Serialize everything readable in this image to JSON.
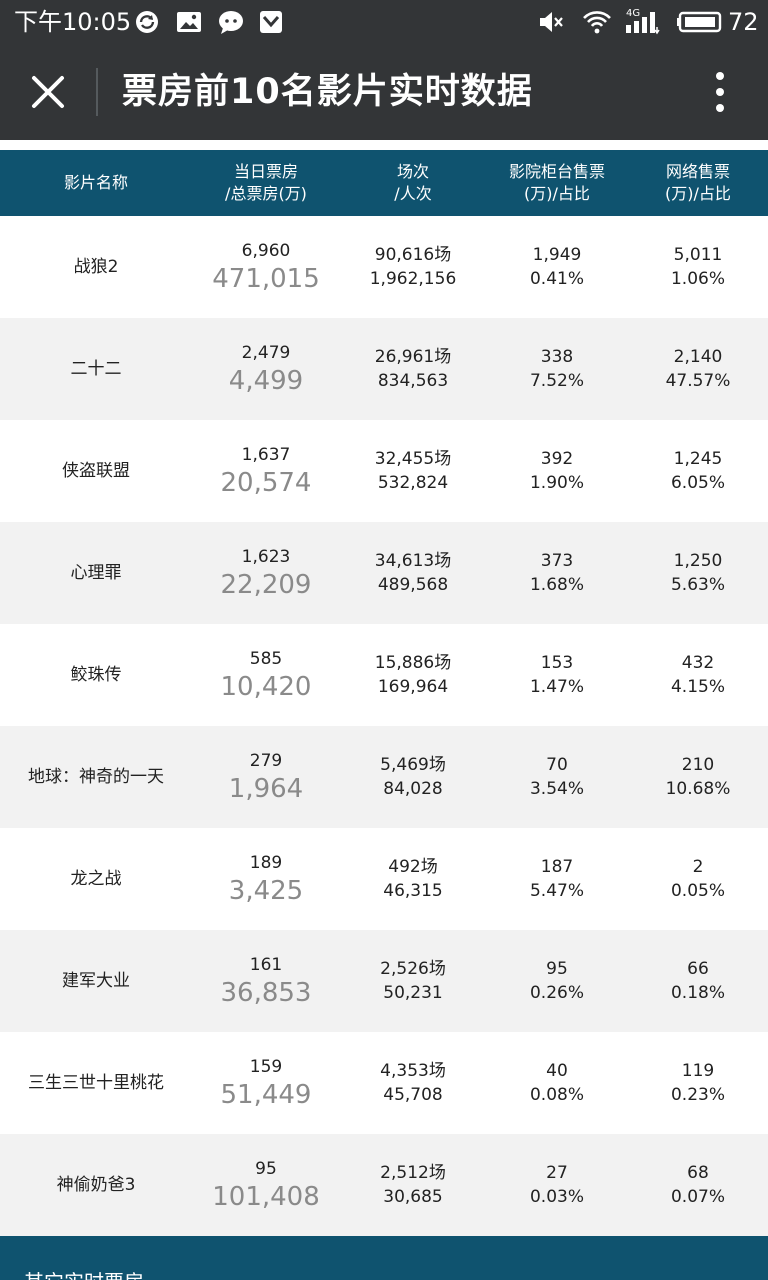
{
  "status_bar": {
    "time": "下午10:05",
    "battery": "72",
    "network": "4G",
    "icons": [
      "sync-icon",
      "image-icon",
      "chat-icon",
      "shield-icon",
      "mute-icon",
      "wifi-icon",
      "signal-icon",
      "battery-icon"
    ]
  },
  "app_bar": {
    "title": "票房前10名影片实时数据",
    "close_icon": "close-icon",
    "more_icon": "more-vertical-icon"
  },
  "table": {
    "headers": [
      {
        "line1": "影片名称",
        "line2": ""
      },
      {
        "line1": "当日票房",
        "line2": "/总票房(万)"
      },
      {
        "line1": "场次",
        "line2": "/人次"
      },
      {
        "line1": "影院柜台售票",
        "line2": "(万)/占比"
      },
      {
        "line1": "网络售票",
        "line2": "(万)/占比"
      }
    ],
    "rows": [
      {
        "name": "战狼2",
        "daily": "6,960",
        "total": "471,015",
        "shows": "90,616场",
        "people": "1,962,156",
        "counter": "1,949",
        "counter_pct": "0.41%",
        "online": "5,011",
        "online_pct": "1.06%"
      },
      {
        "name": "二十二",
        "daily": "2,479",
        "total": "4,499",
        "shows": "26,961场",
        "people": "834,563",
        "counter": "338",
        "counter_pct": "7.52%",
        "online": "2,140",
        "online_pct": "47.57%"
      },
      {
        "name": "侠盗联盟",
        "daily": "1,637",
        "total": "20,574",
        "shows": "32,455场",
        "people": "532,824",
        "counter": "392",
        "counter_pct": "1.90%",
        "online": "1,245",
        "online_pct": "6.05%"
      },
      {
        "name": "心理罪",
        "daily": "1,623",
        "total": "22,209",
        "shows": "34,613场",
        "people": "489,568",
        "counter": "373",
        "counter_pct": "1.68%",
        "online": "1,250",
        "online_pct": "5.63%"
      },
      {
        "name": "鲛珠传",
        "daily": "585",
        "total": "10,420",
        "shows": "15,886场",
        "people": "169,964",
        "counter": "153",
        "counter_pct": "1.47%",
        "online": "432",
        "online_pct": "4.15%"
      },
      {
        "name": "地球：神奇的一天",
        "daily": "279",
        "total": "1,964",
        "shows": "5,469场",
        "people": "84,028",
        "counter": "70",
        "counter_pct": "3.54%",
        "online": "210",
        "online_pct": "10.68%"
      },
      {
        "name": "龙之战",
        "daily": "189",
        "total": "3,425",
        "shows": "492场",
        "people": "46,315",
        "counter": "187",
        "counter_pct": "5.47%",
        "online": "2",
        "online_pct": "0.05%"
      },
      {
        "name": "建军大业",
        "daily": "161",
        "total": "36,853",
        "shows": "2,526场",
        "people": "50,231",
        "counter": "95",
        "counter_pct": "0.26%",
        "online": "66",
        "online_pct": "0.18%"
      },
      {
        "name": "三生三世十里桃花",
        "daily": "159",
        "total": "51,449",
        "shows": "4,353场",
        "people": "45,708",
        "counter": "40",
        "counter_pct": "0.08%",
        "online": "119",
        "online_pct": "0.23%"
      },
      {
        "name": "神偷奶爸3",
        "daily": "95",
        "total": "101,408",
        "shows": "2,512场",
        "people": "30,685",
        "counter": "27",
        "counter_pct": "0.03%",
        "online": "68",
        "online_pct": "0.07%"
      }
    ]
  },
  "footer": {
    "label": "其它实时票房"
  },
  "colors": {
    "bar_bg": "#333537",
    "header_bg": "#0f536f",
    "row_alt": "#f2f2f2",
    "muted_number": "#8a8a8a"
  }
}
